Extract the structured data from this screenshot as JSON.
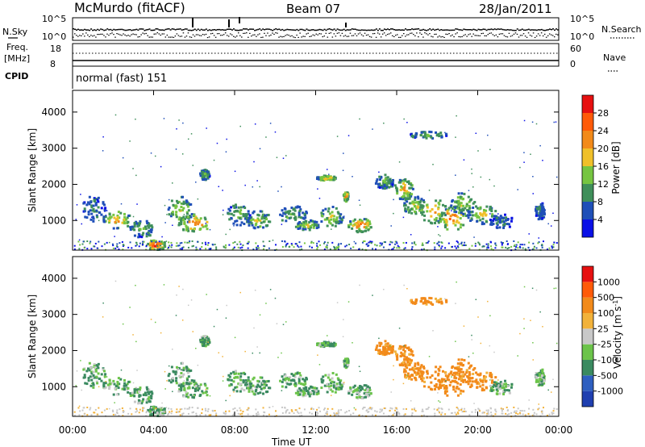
{
  "header": {
    "station": "McMurdo (fitACF)",
    "beam": "Beam 07",
    "date": "28/Jan/2011"
  },
  "strip": {
    "nsky_label": "N.Sky",
    "nsearch_label": "N.Search",
    "noise_ticks": [
      "10^5",
      "10^0"
    ],
    "freq_label": "Freq.",
    "freq_unit": "[MHz]",
    "freq_ticks": [
      "18",
      "8"
    ],
    "nave_label": "Nave",
    "nave_ticks": [
      "60",
      "0"
    ],
    "cpid_label": "CPID",
    "cpid_text": "normal (fast) 151"
  },
  "chart_data": [
    {
      "type": "heatmap",
      "name": "power",
      "ylabel": "Slant Range [km]",
      "xlabel": "",
      "y_ticks": [
        "1000",
        "2000",
        "3000",
        "4000"
      ],
      "ylim": [
        180,
        4600
      ],
      "colorbar": {
        "label": "Power [dB]",
        "ticks": [
          "4",
          "8",
          "12",
          "16",
          "20",
          "24",
          "28"
        ],
        "colors": [
          "#0a10e6",
          "#1f4fb8",
          "#3f8f5a",
          "#76c541",
          "#f0c02a",
          "#f28a1a",
          "#ff5a08",
          "#e61010"
        ]
      }
    },
    {
      "type": "heatmap",
      "name": "velocity",
      "ylabel": "Slant Range [km]",
      "xlabel": "Time UT",
      "x_ticks": [
        "00:00",
        "04:00",
        "08:00",
        "12:00",
        "16:00",
        "20:00",
        "00:00"
      ],
      "y_ticks": [
        "1000",
        "2000",
        "3000",
        "4000"
      ],
      "ylim": [
        180,
        4600
      ],
      "colorbar": {
        "label": "Velocity [m s-1]",
        "ticks": [
          "1000",
          "500",
          "100",
          "25",
          "-25",
          "-100",
          "-500",
          "-1000"
        ],
        "colors": [
          "#1f3fb0",
          "#2e5fc0",
          "#3a8a60",
          "#6cc44a",
          "#c8c8c8",
          "#f2b23a",
          "#f28a1a",
          "#ff5a08",
          "#e61010"
        ]
      }
    }
  ]
}
